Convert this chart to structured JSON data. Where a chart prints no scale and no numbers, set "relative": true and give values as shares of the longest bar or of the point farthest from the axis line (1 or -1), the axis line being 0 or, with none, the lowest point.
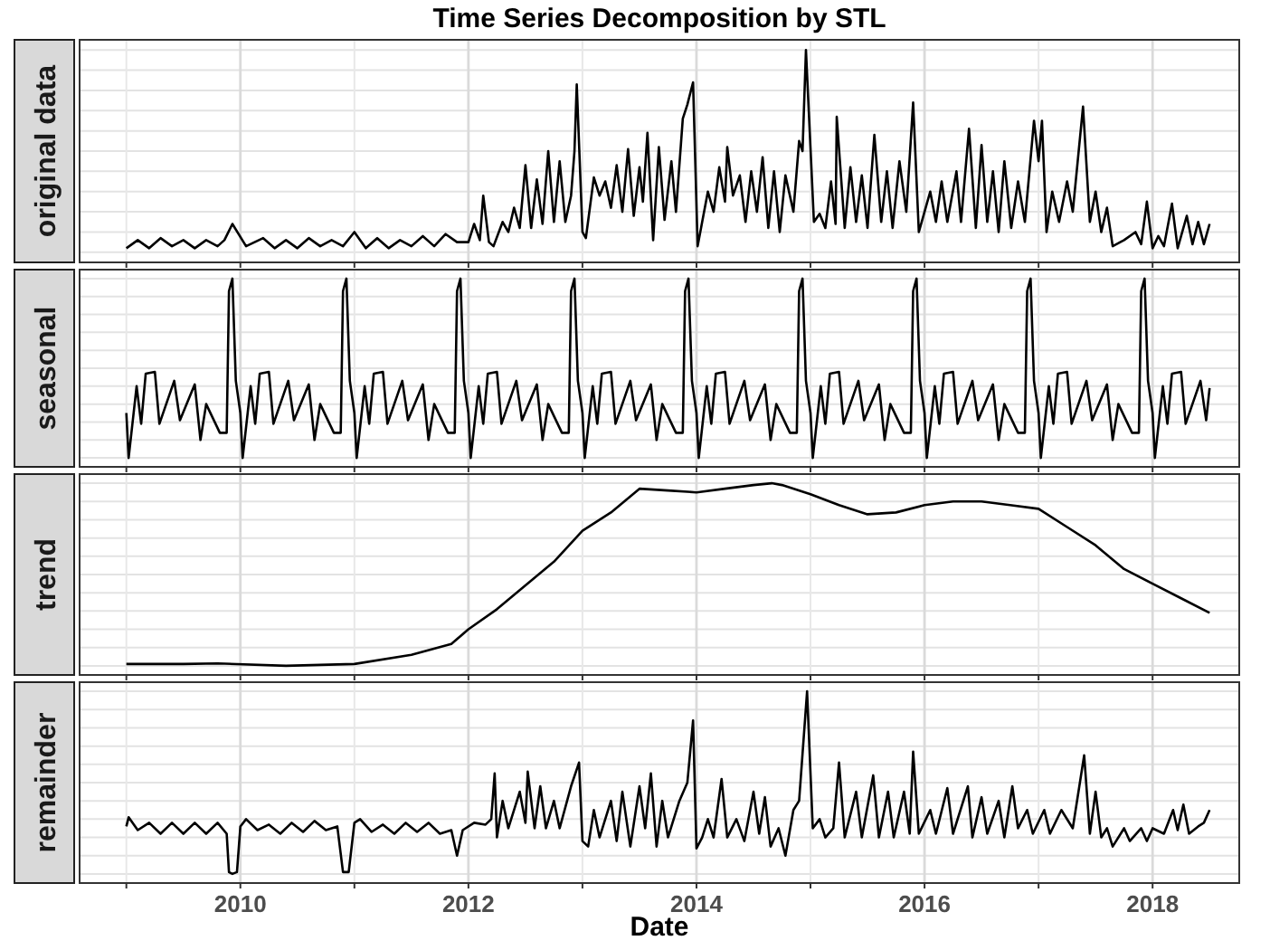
{
  "chart_data": [
    {
      "type": "line",
      "title": "Time Series Decomposition by STL",
      "ylabel": "original data",
      "relative": true,
      "grid": true,
      "tick_labels": false,
      "xlim": [
        2008.59,
        2018.76
      ],
      "xticks": [
        {
          "value": 2009,
          "label": null
        },
        2010,
        {
          "value": 2011,
          "label": null
        },
        2012,
        {
          "value": 2013,
          "label": null
        },
        2014,
        {
          "value": 2015,
          "label": null
        },
        2016,
        {
          "value": 2017,
          "label": null
        },
        2018
      ],
      "series": [
        {
          "color": "#000000",
          "x": [
            2009.0,
            2009.1,
            2009.2,
            2009.3,
            2009.4,
            2009.5,
            2009.6,
            2009.7,
            2009.8,
            2009.86,
            2009.93,
            2010.05,
            2010.2,
            2010.3,
            2010.4,
            2010.5,
            2010.6,
            2010.7,
            2010.8,
            2010.9,
            2011.0,
            2011.1,
            2011.2,
            2011.3,
            2011.4,
            2011.5,
            2011.6,
            2011.7,
            2011.8,
            2011.9,
            2012.0,
            2012.05,
            2012.1,
            2012.13,
            2012.18,
            2012.22,
            2012.3,
            2012.35,
            2012.4,
            2012.45,
            2012.5,
            2012.55,
            2012.6,
            2012.65,
            2012.7,
            2012.75,
            2012.8,
            2012.85,
            2012.9,
            2012.93,
            2012.95,
            2013.0,
            2013.03,
            2013.1,
            2013.15,
            2013.2,
            2013.25,
            2013.3,
            2013.35,
            2013.4,
            2013.45,
            2013.5,
            2013.53,
            2013.57,
            2013.62,
            2013.67,
            2013.72,
            2013.78,
            2013.82,
            2013.88,
            2013.92,
            2013.97,
            2014.01,
            2014.05,
            2014.1,
            2014.15,
            2014.2,
            2014.25,
            2014.27,
            2014.32,
            2014.38,
            2014.43,
            2014.48,
            2014.53,
            2014.58,
            2014.63,
            2014.68,
            2014.73,
            2014.78,
            2014.85,
            2014.9,
            2014.93,
            2014.96,
            2015.03,
            2015.08,
            2015.13,
            2015.18,
            2015.22,
            2015.23,
            2015.3,
            2015.35,
            2015.4,
            2015.45,
            2015.5,
            2015.56,
            2015.62,
            2015.67,
            2015.72,
            2015.78,
            2015.84,
            2015.9,
            2015.95,
            2016.0,
            2016.05,
            2016.1,
            2016.15,
            2016.2,
            2016.28,
            2016.32,
            2016.39,
            2016.45,
            2016.5,
            2016.55,
            2016.6,
            2016.65,
            2016.7,
            2016.76,
            2016.82,
            2016.88,
            2016.96,
            2017.0,
            2017.03,
            2017.07,
            2017.12,
            2017.18,
            2017.25,
            2017.3,
            2017.39,
            2017.45,
            2017.5,
            2017.55,
            2017.6,
            2017.65,
            2017.75,
            2017.85,
            2017.9,
            2017.95,
            2018.0,
            2018.05,
            2018.1,
            2018.17,
            2018.22,
            2018.3,
            2018.35,
            2018.4,
            2018.45,
            2018.5
          ],
          "values": [
            0.02,
            0.06,
            0.02,
            0.07,
            0.03,
            0.06,
            0.02,
            0.06,
            0.03,
            0.06,
            0.14,
            0.03,
            0.07,
            0.02,
            0.06,
            0.02,
            0.07,
            0.03,
            0.06,
            0.03,
            0.1,
            0.02,
            0.07,
            0.02,
            0.06,
            0.03,
            0.08,
            0.03,
            0.09,
            0.05,
            0.05,
            0.14,
            0.06,
            0.28,
            0.05,
            0.03,
            0.15,
            0.1,
            0.22,
            0.12,
            0.43,
            0.12,
            0.36,
            0.14,
            0.5,
            0.15,
            0.45,
            0.15,
            0.28,
            0.5,
            0.83,
            0.1,
            0.07,
            0.37,
            0.28,
            0.35,
            0.22,
            0.43,
            0.2,
            0.51,
            0.18,
            0.42,
            0.25,
            0.59,
            0.06,
            0.52,
            0.16,
            0.45,
            0.2,
            0.66,
            0.73,
            0.84,
            0.03,
            0.15,
            0.3,
            0.2,
            0.42,
            0.25,
            0.52,
            0.28,
            0.38,
            0.15,
            0.4,
            0.2,
            0.47,
            0.12,
            0.4,
            0.1,
            0.38,
            0.2,
            0.55,
            0.5,
            1.0,
            0.15,
            0.19,
            0.12,
            0.35,
            0.14,
            0.67,
            0.12,
            0.42,
            0.15,
            0.38,
            0.12,
            0.58,
            0.15,
            0.4,
            0.12,
            0.45,
            0.2,
            0.74,
            0.1,
            0.2,
            0.3,
            0.15,
            0.35,
            0.15,
            0.4,
            0.15,
            0.61,
            0.12,
            0.53,
            0.15,
            0.4,
            0.1,
            0.45,
            0.12,
            0.35,
            0.15,
            0.65,
            0.45,
            0.65,
            0.1,
            0.3,
            0.15,
            0.35,
            0.2,
            0.72,
            0.15,
            0.3,
            0.1,
            0.22,
            0.03,
            0.06,
            0.1,
            0.04,
            0.25,
            0.02,
            0.08,
            0.03,
            0.24,
            0.02,
            0.18,
            0.04,
            0.15,
            0.04,
            0.14
          ]
        }
      ]
    },
    {
      "type": "line",
      "ylabel": "seasonal",
      "relative": true,
      "grid": true,
      "tick_labels": false,
      "xlim": [
        2008.59,
        2018.76
      ],
      "xticks": [
        {
          "value": 2009,
          "label": null
        },
        2010,
        {
          "value": 2011,
          "label": null
        },
        2012,
        {
          "value": 2013,
          "label": null
        },
        2014,
        {
          "value": 2015,
          "label": null
        },
        2016,
        {
          "value": 2017,
          "label": null
        },
        2018
      ],
      "series": [
        {
          "color": "#000000",
          "x": [
            2009.0,
            2009.02,
            2009.09,
            2009.13,
            2009.17,
            2009.25,
            2009.29,
            2009.42,
            2009.47,
            2009.6,
            2009.65,
            2009.7,
            2009.82,
            2009.88,
            2009.9,
            2009.93,
            2009.96,
            2010.0,
            2010.02,
            2010.09,
            2010.13,
            2010.17,
            2010.25,
            2010.29,
            2010.42,
            2010.47,
            2010.6,
            2010.65,
            2010.7,
            2010.82,
            2010.88,
            2010.9,
            2010.93,
            2010.96,
            2011.0,
            2011.02,
            2011.09,
            2011.13,
            2011.17,
            2011.25,
            2011.29,
            2011.42,
            2011.47,
            2011.6,
            2011.65,
            2011.7,
            2011.82,
            2011.88,
            2011.9,
            2011.93,
            2011.96,
            2012.0,
            2012.02,
            2012.09,
            2012.13,
            2012.17,
            2012.25,
            2012.29,
            2012.42,
            2012.47,
            2012.6,
            2012.65,
            2012.7,
            2012.82,
            2012.88,
            2012.9,
            2012.93,
            2012.96,
            2013.0,
            2013.02,
            2013.09,
            2013.13,
            2013.17,
            2013.25,
            2013.29,
            2013.42,
            2013.47,
            2013.6,
            2013.65,
            2013.7,
            2013.82,
            2013.88,
            2013.9,
            2013.93,
            2013.96,
            2014.0,
            2014.02,
            2014.09,
            2014.13,
            2014.17,
            2014.25,
            2014.29,
            2014.42,
            2014.47,
            2014.6,
            2014.65,
            2014.7,
            2014.82,
            2014.88,
            2014.9,
            2014.93,
            2014.96,
            2015.0,
            2015.02,
            2015.09,
            2015.13,
            2015.17,
            2015.25,
            2015.29,
            2015.42,
            2015.47,
            2015.6,
            2015.65,
            2015.7,
            2015.82,
            2015.88,
            2015.9,
            2015.93,
            2015.96,
            2016.0,
            2016.02,
            2016.09,
            2016.13,
            2016.17,
            2016.25,
            2016.29,
            2016.42,
            2016.47,
            2016.6,
            2016.65,
            2016.7,
            2016.82,
            2016.88,
            2016.9,
            2016.93,
            2016.96,
            2017.0,
            2017.02,
            2017.09,
            2017.13,
            2017.17,
            2017.25,
            2017.29,
            2017.42,
            2017.47,
            2017.6,
            2017.65,
            2017.7,
            2017.82,
            2017.88,
            2017.9,
            2017.93,
            2017.96,
            2018.0,
            2018.02,
            2018.09,
            2018.13,
            2018.17,
            2018.25,
            2018.29,
            2018.42,
            2018.47,
            2018.5
          ],
          "values": [
            0.25,
            0.0,
            0.4,
            0.19,
            0.47,
            0.48,
            0.19,
            0.43,
            0.21,
            0.41,
            0.1,
            0.3,
            0.14,
            0.14,
            0.93,
            1.0,
            0.43,
            0.25,
            0.0,
            0.4,
            0.19,
            0.47,
            0.48,
            0.19,
            0.43,
            0.21,
            0.41,
            0.1,
            0.3,
            0.14,
            0.14,
            0.93,
            1.0,
            0.43,
            0.25,
            0.0,
            0.4,
            0.19,
            0.47,
            0.48,
            0.19,
            0.43,
            0.21,
            0.41,
            0.1,
            0.3,
            0.14,
            0.14,
            0.93,
            1.0,
            0.43,
            0.25,
            0.0,
            0.4,
            0.19,
            0.47,
            0.48,
            0.19,
            0.43,
            0.21,
            0.41,
            0.1,
            0.3,
            0.14,
            0.14,
            0.93,
            1.0,
            0.43,
            0.25,
            0.0,
            0.4,
            0.19,
            0.47,
            0.48,
            0.19,
            0.43,
            0.21,
            0.41,
            0.1,
            0.3,
            0.14,
            0.14,
            0.93,
            1.0,
            0.43,
            0.25,
            0.0,
            0.4,
            0.19,
            0.47,
            0.48,
            0.19,
            0.43,
            0.21,
            0.41,
            0.1,
            0.3,
            0.14,
            0.14,
            0.93,
            1.0,
            0.43,
            0.25,
            0.0,
            0.4,
            0.19,
            0.47,
            0.48,
            0.19,
            0.43,
            0.21,
            0.41,
            0.1,
            0.3,
            0.14,
            0.14,
            0.93,
            1.0,
            0.43,
            0.25,
            0.0,
            0.4,
            0.19,
            0.47,
            0.48,
            0.19,
            0.43,
            0.21,
            0.41,
            0.1,
            0.3,
            0.14,
            0.14,
            0.93,
            1.0,
            0.43,
            0.25,
            0.0,
            0.4,
            0.19,
            0.47,
            0.48,
            0.19,
            0.43,
            0.21,
            0.41,
            0.1,
            0.3,
            0.14,
            0.14,
            0.93,
            1.0,
            0.43,
            0.25,
            0.0,
            0.4,
            0.19,
            0.47,
            0.48,
            0.19,
            0.43,
            0.21,
            0.39
          ]
        }
      ]
    },
    {
      "type": "line",
      "ylabel": "trend",
      "relative": true,
      "grid": true,
      "tick_labels": false,
      "xlim": [
        2008.59,
        2018.76
      ],
      "xticks": [
        {
          "value": 2009,
          "label": null
        },
        2010,
        {
          "value": 2011,
          "label": null
        },
        2012,
        {
          "value": 2013,
          "label": null
        },
        2014,
        {
          "value": 2015,
          "label": null
        },
        2016,
        {
          "value": 2017,
          "label": null
        },
        2018
      ],
      "series": [
        {
          "color": "#000000",
          "x": [
            2009.0,
            2009.5,
            2009.8,
            2010.4,
            2011.0,
            2011.5,
            2011.85,
            2012.0,
            2012.25,
            2012.5,
            2012.75,
            2013.0,
            2013.25,
            2013.5,
            2013.75,
            2014.0,
            2014.25,
            2014.5,
            2014.66,
            2014.75,
            2015.0,
            2015.25,
            2015.5,
            2015.75,
            2016.0,
            2016.25,
            2016.5,
            2016.75,
            2017.0,
            2017.25,
            2017.5,
            2017.75,
            2018.0,
            2018.25,
            2018.5
          ],
          "values": [
            0.01,
            0.01,
            0.013,
            0.0,
            0.01,
            0.06,
            0.12,
            0.2,
            0.31,
            0.44,
            0.57,
            0.74,
            0.84,
            0.97,
            0.96,
            0.95,
            0.97,
            0.99,
            1.0,
            0.99,
            0.94,
            0.88,
            0.83,
            0.84,
            0.88,
            0.9,
            0.9,
            0.88,
            0.86,
            0.76,
            0.66,
            0.53,
            0.45,
            0.37,
            0.29
          ]
        }
      ]
    },
    {
      "type": "line",
      "ylabel": "remainder",
      "xlabel": "Date",
      "relative": true,
      "grid": true,
      "tick_labels": "x",
      "xlim": [
        2008.59,
        2018.76
      ],
      "xticks": [
        {
          "value": 2009,
          "label": null
        },
        2010,
        {
          "value": 2011,
          "label": null
        },
        2012,
        {
          "value": 2013,
          "label": null
        },
        2014,
        {
          "value": 2015,
          "label": null
        },
        2016,
        {
          "value": 2017,
          "label": null
        },
        2018
      ],
      "series": [
        {
          "color": "#000000",
          "x": [
            2009.0,
            2009.02,
            2009.1,
            2009.2,
            2009.3,
            2009.4,
            2009.5,
            2009.6,
            2009.7,
            2009.8,
            2009.88,
            2009.9,
            2009.93,
            2009.97,
            2010.0,
            2010.05,
            2010.15,
            2010.25,
            2010.35,
            2010.45,
            2010.55,
            2010.65,
            2010.75,
            2010.85,
            2010.9,
            2010.95,
            2011.0,
            2011.05,
            2011.15,
            2011.25,
            2011.35,
            2011.45,
            2011.55,
            2011.65,
            2011.75,
            2011.85,
            2011.9,
            2011.95,
            2012.05,
            2012.15,
            2012.2,
            2012.23,
            2012.25,
            2012.3,
            2012.35,
            2012.45,
            2012.5,
            2012.52,
            2012.58,
            2012.63,
            2012.68,
            2012.75,
            2012.8,
            2012.9,
            2012.97,
            2013.0,
            2013.05,
            2013.1,
            2013.15,
            2013.25,
            2013.3,
            2013.35,
            2013.42,
            2013.5,
            2013.55,
            2013.6,
            2013.65,
            2013.7,
            2013.75,
            2013.85,
            2013.92,
            2013.97,
            2014.0,
            2014.05,
            2014.1,
            2014.15,
            2014.22,
            2014.27,
            2014.35,
            2014.42,
            2014.5,
            2014.55,
            2014.6,
            2014.65,
            2014.72,
            2014.78,
            2014.85,
            2014.9,
            2014.97,
            2015.02,
            2015.08,
            2015.13,
            2015.2,
            2015.25,
            2015.3,
            2015.4,
            2015.45,
            2015.55,
            2015.6,
            2015.68,
            2015.73,
            2015.82,
            2015.87,
            2015.9,
            2015.95,
            2016.05,
            2016.1,
            2016.2,
            2016.25,
            2016.38,
            2016.42,
            2016.5,
            2016.55,
            2016.65,
            2016.7,
            2016.77,
            2016.82,
            2016.9,
            2016.95,
            2017.05,
            2017.1,
            2017.2,
            2017.3,
            2017.4,
            2017.45,
            2017.5,
            2017.55,
            2017.6,
            2017.65,
            2017.75,
            2017.8,
            2017.9,
            2017.95,
            2018.0,
            2018.1,
            2018.18,
            2018.22,
            2018.27,
            2018.32,
            2018.4,
            2018.45,
            2018.5
          ],
          "values": [
            0.26,
            0.31,
            0.24,
            0.28,
            0.22,
            0.28,
            0.22,
            0.28,
            0.22,
            0.28,
            0.22,
            0.01,
            0.0,
            0.01,
            0.26,
            0.3,
            0.24,
            0.27,
            0.22,
            0.28,
            0.23,
            0.29,
            0.24,
            0.26,
            0.01,
            0.01,
            0.28,
            0.3,
            0.23,
            0.27,
            0.22,
            0.28,
            0.23,
            0.28,
            0.22,
            0.24,
            0.1,
            0.24,
            0.28,
            0.27,
            0.3,
            0.55,
            0.2,
            0.4,
            0.25,
            0.45,
            0.28,
            0.56,
            0.25,
            0.48,
            0.25,
            0.4,
            0.25,
            0.48,
            0.61,
            0.18,
            0.15,
            0.35,
            0.2,
            0.4,
            0.18,
            0.45,
            0.15,
            0.48,
            0.25,
            0.55,
            0.15,
            0.4,
            0.2,
            0.4,
            0.5,
            0.84,
            0.14,
            0.2,
            0.3,
            0.2,
            0.52,
            0.2,
            0.3,
            0.18,
            0.45,
            0.22,
            0.42,
            0.15,
            0.25,
            0.1,
            0.35,
            0.4,
            1.0,
            0.25,
            0.3,
            0.2,
            0.25,
            0.61,
            0.2,
            0.45,
            0.2,
            0.54,
            0.2,
            0.45,
            0.2,
            0.45,
            0.22,
            0.67,
            0.22,
            0.35,
            0.22,
            0.47,
            0.22,
            0.48,
            0.2,
            0.42,
            0.22,
            0.4,
            0.2,
            0.48,
            0.25,
            0.35,
            0.22,
            0.35,
            0.22,
            0.35,
            0.25,
            0.65,
            0.22,
            0.45,
            0.2,
            0.25,
            0.15,
            0.25,
            0.18,
            0.25,
            0.18,
            0.25,
            0.22,
            0.35,
            0.24,
            0.38,
            0.22,
            0.26,
            0.28,
            0.35
          ]
        }
      ]
    }
  ]
}
